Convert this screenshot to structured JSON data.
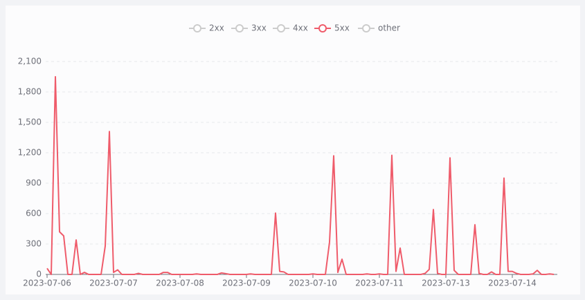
{
  "chart_data": {
    "type": "line",
    "categories": [
      "2023-07-06",
      null,
      null,
      null,
      null,
      null,
      null,
      null,
      null,
      null,
      null,
      null,
      null,
      null,
      null,
      null,
      "2023-07-07",
      null,
      null,
      null,
      null,
      null,
      null,
      null,
      null,
      null,
      null,
      null,
      null,
      null,
      null,
      null,
      "2023-07-08",
      null,
      null,
      null,
      null,
      null,
      null,
      null,
      null,
      null,
      null,
      null,
      null,
      null,
      null,
      null,
      "2023-07-09",
      null,
      null,
      null,
      null,
      null,
      null,
      null,
      null,
      null,
      null,
      null,
      null,
      null,
      null,
      null,
      "2023-07-10",
      null,
      null,
      null,
      null,
      null,
      null,
      null,
      null,
      null,
      null,
      null,
      null,
      null,
      null,
      null,
      "2023-07-11",
      null,
      null,
      null,
      null,
      null,
      null,
      null,
      null,
      null,
      null,
      null,
      null,
      null,
      null,
      null,
      "2023-07-13",
      null,
      null,
      null,
      null,
      null,
      null,
      null,
      null,
      null,
      null,
      null,
      null,
      null,
      null,
      null,
      "2023-07-14",
      null,
      null,
      null,
      null,
      null,
      null,
      null,
      null,
      null,
      null
    ],
    "series": [
      {
        "name": "2xx",
        "color": "#cccccc",
        "visible": false
      },
      {
        "name": "3xx",
        "color": "#cccccc",
        "visible": false
      },
      {
        "name": "4xx",
        "color": "#cccccc",
        "visible": false
      },
      {
        "name": "5xx",
        "color": "#ef5b6a",
        "visible": true,
        "values": [
          60,
          0,
          1950,
          420,
          380,
          0,
          0,
          340,
          0,
          20,
          0,
          0,
          0,
          0,
          280,
          1410,
          20,
          45,
          0,
          0,
          0,
          0,
          10,
          0,
          0,
          0,
          0,
          0,
          20,
          20,
          0,
          0,
          0,
          0,
          0,
          0,
          5,
          0,
          0,
          0,
          0,
          0,
          15,
          8,
          0,
          0,
          0,
          0,
          0,
          5,
          0,
          0,
          0,
          0,
          0,
          605,
          30,
          25,
          0,
          0,
          0,
          0,
          0,
          0,
          5,
          0,
          0,
          0,
          320,
          1170,
          20,
          150,
          0,
          0,
          0,
          0,
          0,
          5,
          0,
          0,
          5,
          0,
          0,
          1175,
          30,
          260,
          0,
          0,
          0,
          0,
          0,
          10,
          50,
          640,
          10,
          0,
          0,
          1150,
          40,
          0,
          0,
          0,
          0,
          490,
          10,
          0,
          0,
          25,
          0,
          0,
          950,
          30,
          30,
          10,
          0,
          0,
          0,
          5,
          40,
          0,
          0,
          5,
          0
        ]
      },
      {
        "name": "other",
        "color": "#cccccc",
        "visible": false
      }
    ],
    "ylim": [
      0,
      2100
    ],
    "yticks": [
      0,
      300,
      600,
      900,
      {
        "value": 1200,
        "label": "1,200"
      },
      {
        "value": 1500,
        "label": "1,500"
      },
      {
        "value": 1800,
        "label": "1,800"
      },
      {
        "value": 2100,
        "label": "2,100"
      }
    ],
    "grid": true
  }
}
